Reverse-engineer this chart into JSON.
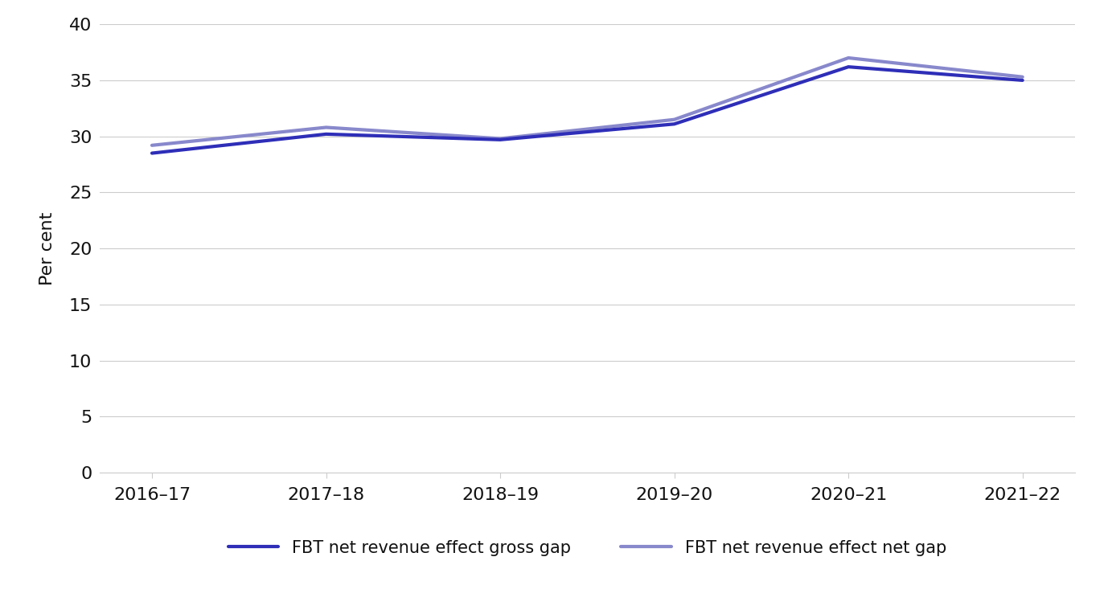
{
  "x_labels": [
    "2016–17",
    "2017–18",
    "2018–19",
    "2019–20",
    "2020–21",
    "2021–22"
  ],
  "gross_gap": [
    28.5,
    30.2,
    29.7,
    31.1,
    36.2,
    35.0
  ],
  "net_gap": [
    29.2,
    30.8,
    29.8,
    31.5,
    37.0,
    35.3
  ],
  "gross_color": "#2e2eb8",
  "net_color": "#8888cc",
  "line_width": 3.0,
  "ylabel": "Per cent",
  "ylim": [
    0,
    40
  ],
  "yticks": [
    0,
    5,
    10,
    15,
    20,
    25,
    30,
    35,
    40
  ],
  "legend_gross": "FBT net revenue effect gross gap",
  "legend_net": "FBT net revenue effect net gap",
  "grid_color": "#cccccc",
  "font_color": "#111111",
  "tick_fontsize": 16,
  "ylabel_fontsize": 16,
  "legend_fontsize": 15
}
